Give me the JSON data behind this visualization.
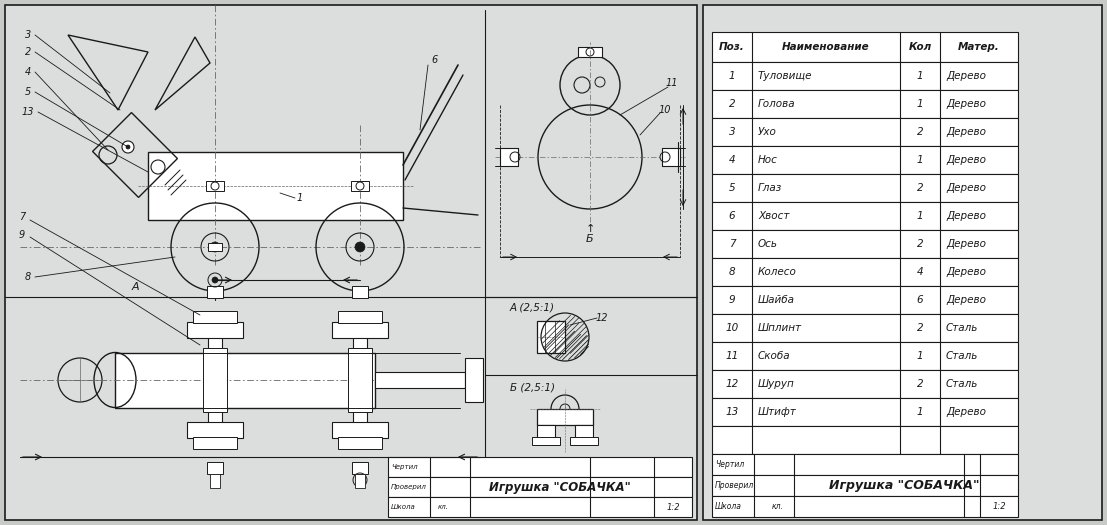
{
  "title": "Игрушка \"СОБАЧКА\"",
  "scale": "1:2",
  "school_label": "Школа",
  "school_value": "кл.",
  "chertil": "Чертил",
  "proveril": "Проверил",
  "bg_color": "#c8cac8",
  "table_header": [
    "Поз.",
    "Наименование",
    "Кол",
    "Матер."
  ],
  "table_rows": [
    [
      "1",
      "Туловище",
      "1",
      "Дерево"
    ],
    [
      "2",
      "Голова",
      "1",
      "Дерево"
    ],
    [
      "3",
      "Ухо",
      "2",
      "Дерево"
    ],
    [
      "4",
      "Нос",
      "1",
      "Дерево"
    ],
    [
      "5",
      "Глаз",
      "2",
      "Дерево"
    ],
    [
      "6",
      "Хвост",
      "1",
      "Дерево"
    ],
    [
      "7",
      "Ось",
      "2",
      "Дерево"
    ],
    [
      "8",
      "Колесо",
      "4",
      "Дерево"
    ],
    [
      "9",
      "Шайба",
      "6",
      "Дерево"
    ],
    [
      "10",
      "Шплинт",
      "2",
      "Сталь"
    ],
    [
      "11",
      "Скоба",
      "1",
      "Сталь"
    ],
    [
      "12",
      "Шуруп",
      "2",
      "Сталь"
    ],
    [
      "13",
      "Штифт",
      "1",
      "Дерево"
    ]
  ],
  "section_labels": [
    "А (2,5:1)",
    "Б (2,5:1)"
  ],
  "drawing_bg": "#dcdedd",
  "line_color": "#1a1a1a",
  "dash_color": "#666666"
}
